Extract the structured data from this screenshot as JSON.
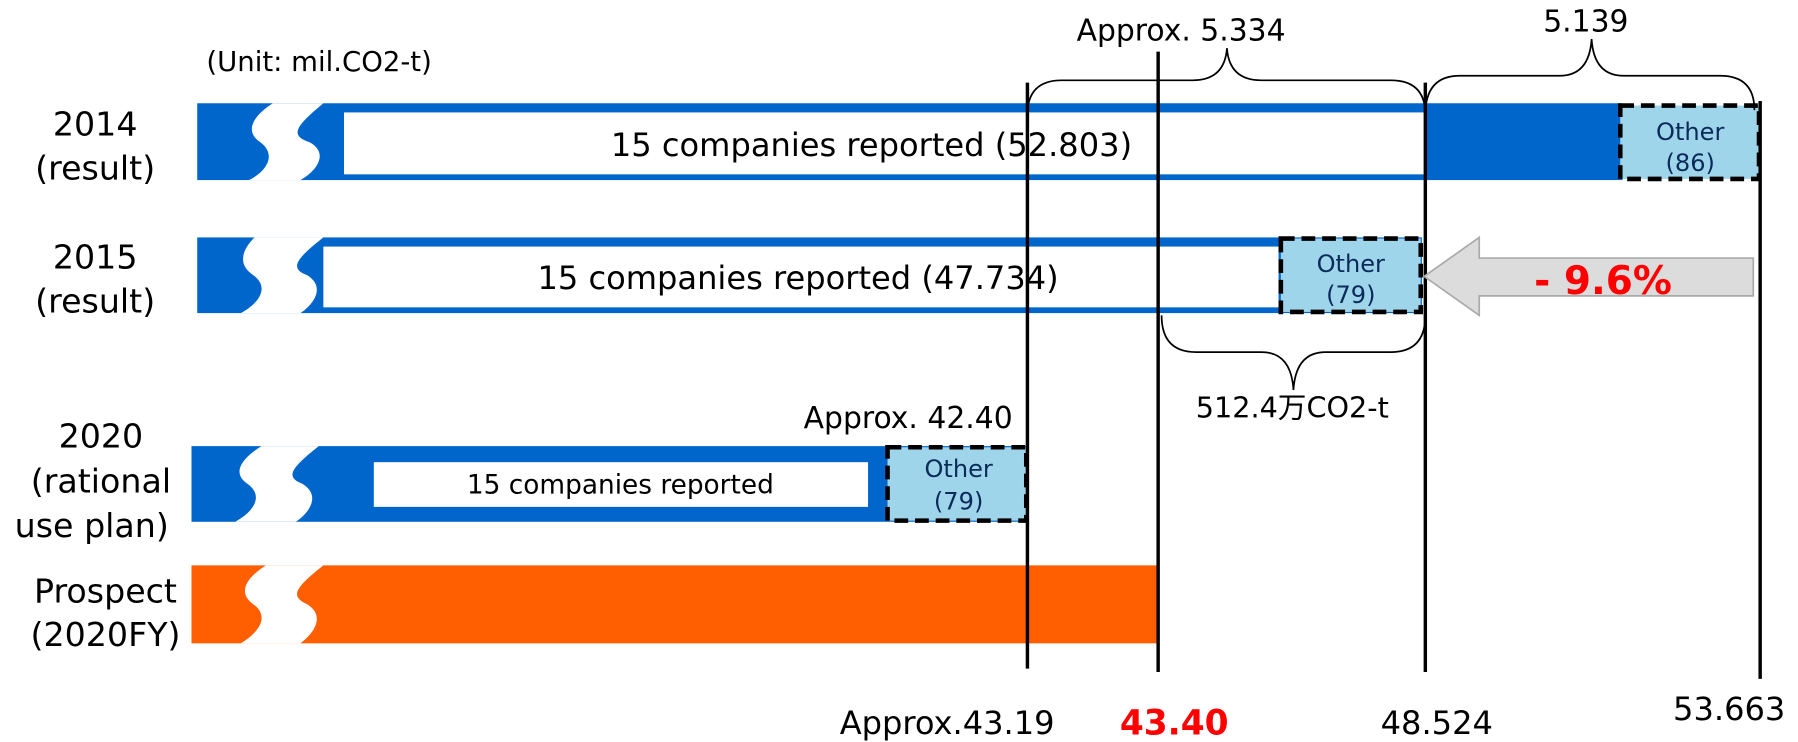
{
  "unit": "(Unit: mil.CO2-t)",
  "rows": [
    {
      "label": [
        "2014",
        "(result)"
      ],
      "bar_text": "15 companies reported (52.803)",
      "other": [
        "Other",
        "(86)"
      ]
    },
    {
      "label": [
        "2015",
        "(result)"
      ],
      "bar_text": "15 companies reported (47.734)",
      "other": [
        "Other",
        "(79)"
      ]
    },
    {
      "label": [
        "2020",
        "(rational",
        "use plan)"
      ],
      "bar_text": "15 companies reported",
      "other": [
        "Other",
        "(79)"
      ]
    }
  ],
  "prospect": {
    "label": [
      "Prospect",
      "(2020FY)"
    ]
  },
  "annotations": {
    "top_brace_1": "Approx. 5.334",
    "top_brace_2": "5.139",
    "bottom_brace": "512.4万CO2-t",
    "plan_total": "Approx. 42.40",
    "change": "- 9.6%"
  },
  "axis_labels": [
    "Approx.43.19",
    "43.40",
    "48.524",
    "53.663"
  ]
}
